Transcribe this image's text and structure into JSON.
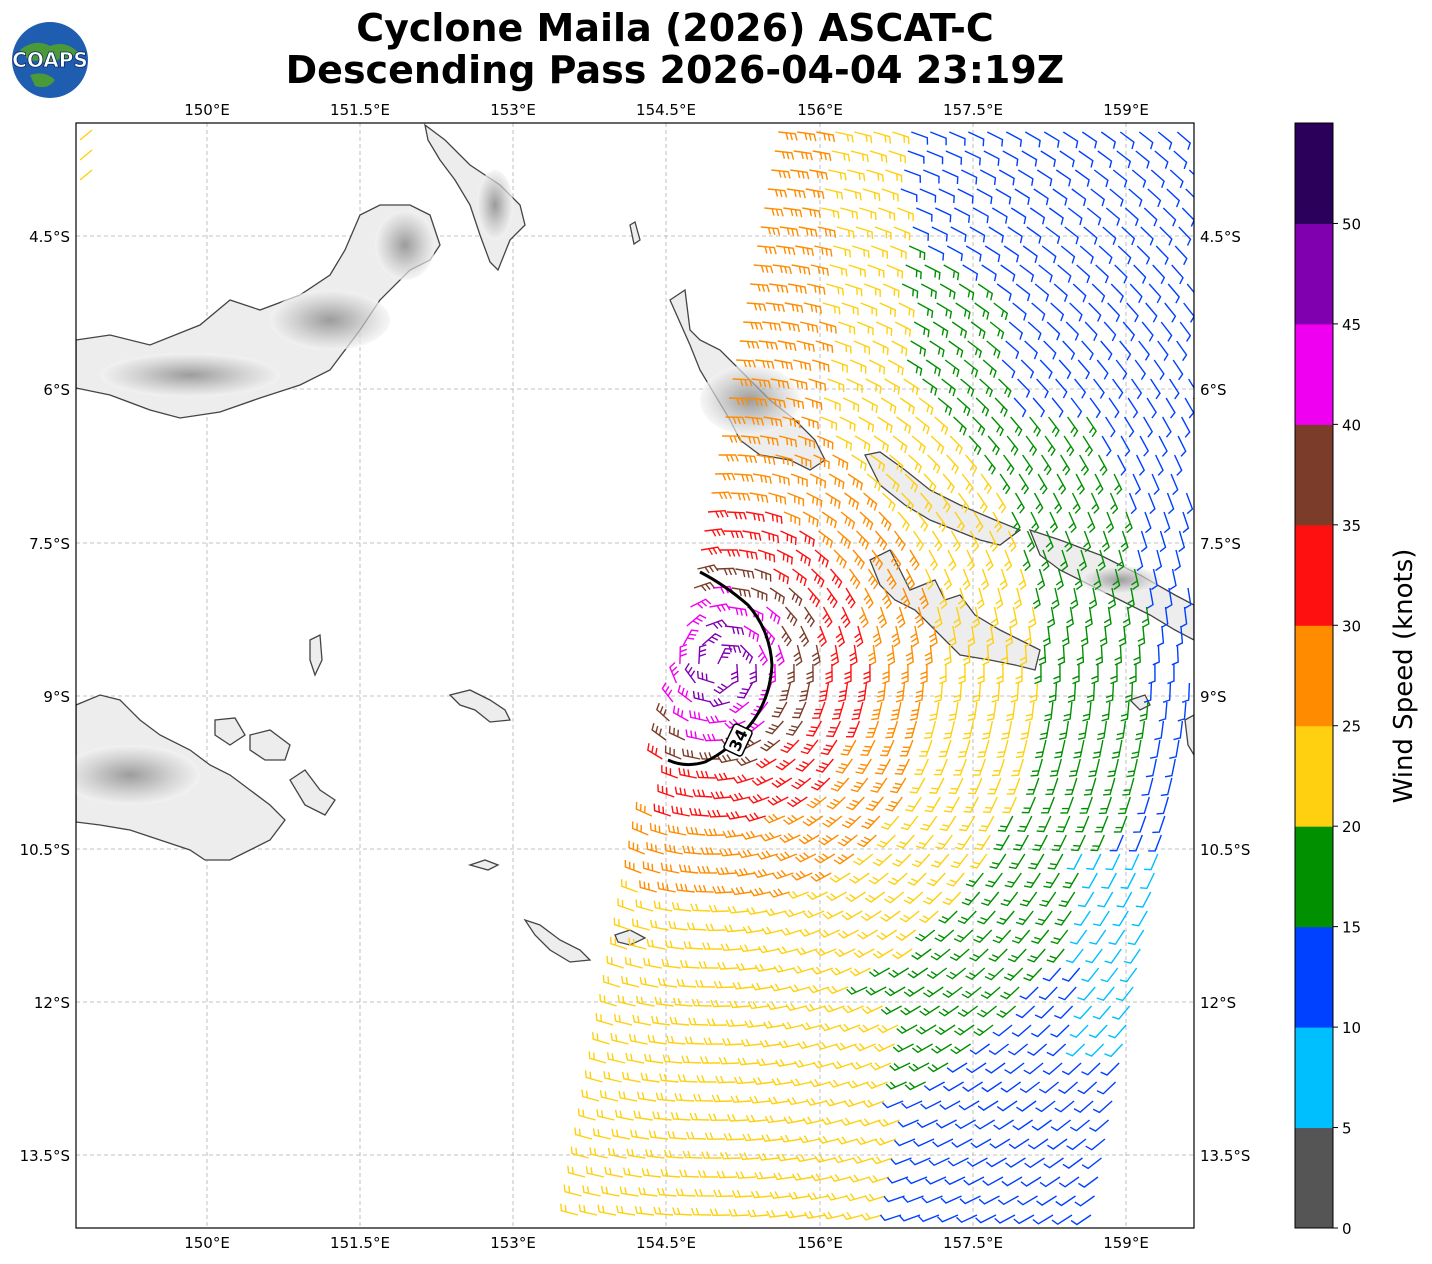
{
  "header": {
    "title_line1": "Cyclone Maila (2026) ASCAT-C",
    "title_line2": "Descending Pass 2026-04-04 23:19Z",
    "logo_text": "COAPS"
  },
  "map": {
    "lon_ticks": [
      "150°E",
      "151.5°E",
      "153°E",
      "154.5°E",
      "156°E",
      "157.5°E",
      "159°E"
    ],
    "lat_ticks": [
      "4.5°S",
      "6°S",
      "7.5°S",
      "9°S",
      "10.5°S",
      "12°S",
      "13.5°S"
    ],
    "contour_label": "34",
    "land_color": "#ffffff",
    "coast_color": "#444444"
  },
  "colorbar": {
    "label": "Wind Speed (knots)",
    "ticks": [
      "0",
      "5",
      "10",
      "15",
      "20",
      "25",
      "30",
      "35",
      "40",
      "45",
      "50"
    ],
    "colors": [
      "#555555",
      "#00bfff",
      "#0040ff",
      "#009000",
      "#ffd010",
      "#ff8c00",
      "#ff1010",
      "#7b3c2a",
      "#f000f0",
      "#8000b0",
      "#2a005a"
    ]
  }
}
